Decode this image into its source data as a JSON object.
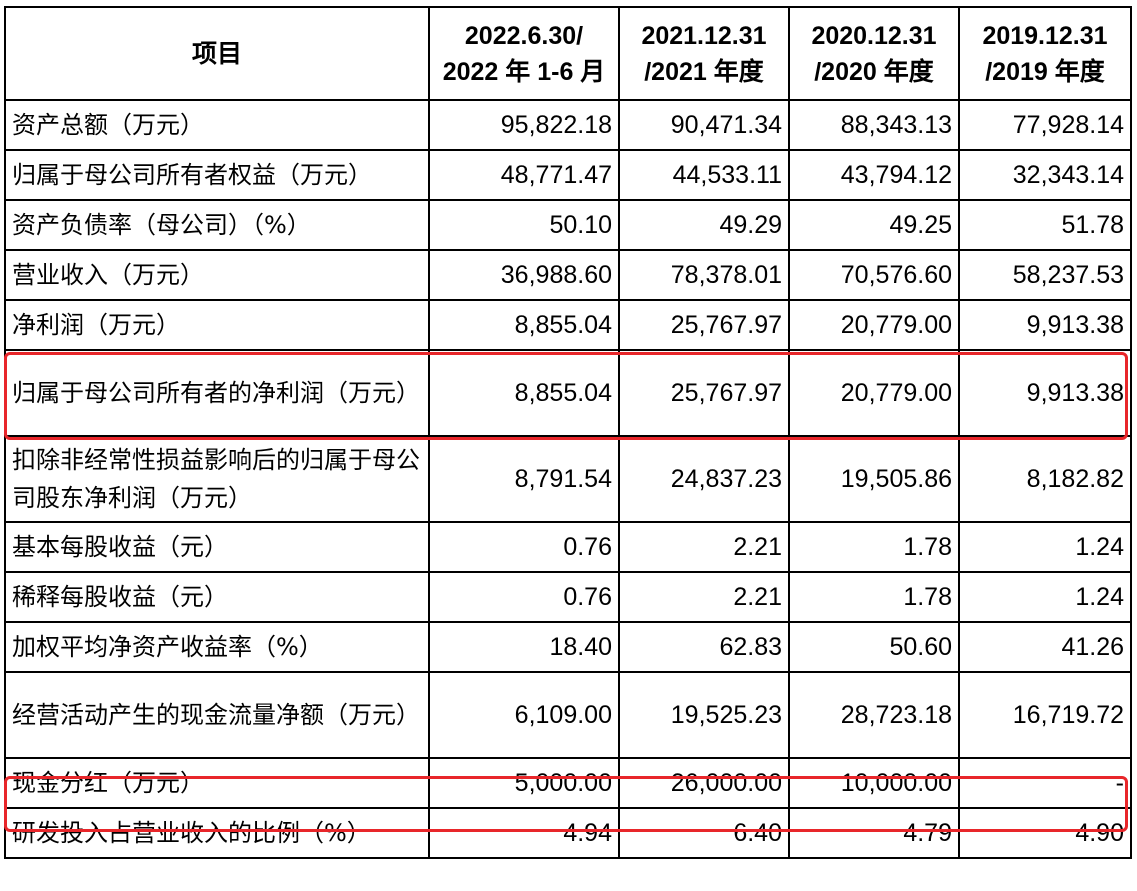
{
  "table": {
    "header": {
      "item": "项目",
      "periods": [
        {
          "line1": "2022.6.30/",
          "line2": "2022 年 1-6 月"
        },
        {
          "line1": "2021.12.31",
          "line2": "/2021 年度"
        },
        {
          "line1": "2020.12.31",
          "line2": "/2020 年度"
        },
        {
          "line1": "2019.12.31",
          "line2": "/2019 年度"
        }
      ]
    },
    "rows": [
      {
        "label": "资产总额（万元）",
        "values": [
          "95,822.18",
          "90,471.34",
          "88,343.13",
          "77,928.14"
        ]
      },
      {
        "label": "归属于母公司所有者权益（万元）",
        "values": [
          "48,771.47",
          "44,533.11",
          "43,794.12",
          "32,343.14"
        ]
      },
      {
        "label": "资产负债率（母公司）（%）",
        "values": [
          "50.10",
          "49.29",
          "49.25",
          "51.78"
        ]
      },
      {
        "label": "营业收入（万元）",
        "values": [
          "36,988.60",
          "78,378.01",
          "70,576.60",
          "58,237.53"
        ]
      },
      {
        "label": "净利润（万元）",
        "values": [
          "8,855.04",
          "25,767.97",
          "20,779.00",
          "9,913.38"
        ]
      },
      {
        "label": "归属于母公司所有者的净利润（万元）",
        "values": [
          "8,855.04",
          "25,767.97",
          "20,779.00",
          "9,913.38"
        ]
      },
      {
        "label": "扣除非经常性损益影响后的归属于母公司股东净利润（万元）",
        "values": [
          "8,791.54",
          "24,837.23",
          "19,505.86",
          "8,182.82"
        ]
      },
      {
        "label": "基本每股收益（元）",
        "values": [
          "0.76",
          "2.21",
          "1.78",
          "1.24"
        ]
      },
      {
        "label": "稀释每股收益（元）",
        "values": [
          "0.76",
          "2.21",
          "1.78",
          "1.24"
        ]
      },
      {
        "label": "加权平均净资产收益率（%）",
        "values": [
          "18.40",
          "62.83",
          "50.60",
          "41.26"
        ]
      },
      {
        "label": "经营活动产生的现金流量净额（万元）",
        "values": [
          "6,109.00",
          "19,525.23",
          "28,723.18",
          "16,719.72"
        ]
      },
      {
        "label": "现金分红（万元）",
        "values": [
          "5,000.00",
          "26,000.00",
          "10,000.00",
          "-"
        ]
      },
      {
        "label": "研发投入占营业收入的比例（%）",
        "values": [
          "4.94",
          "6.40",
          "4.79",
          "4.90"
        ]
      }
    ]
  },
  "highlight_color": "#e8262a"
}
